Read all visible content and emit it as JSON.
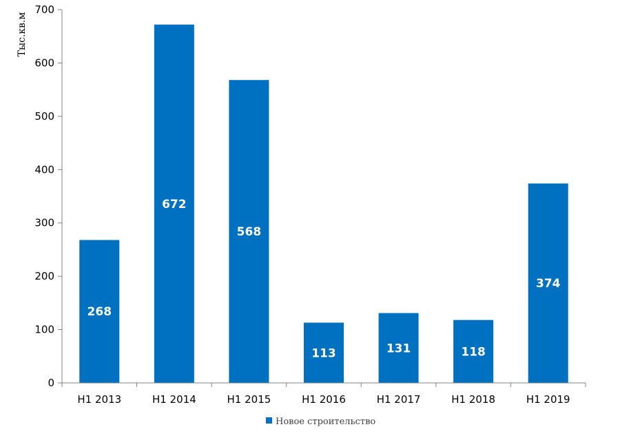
{
  "chart_data": {
    "type": "bar",
    "title": "",
    "xlabel": "",
    "ylabel": "Тыс.кв.м",
    "ylim": [
      0,
      700
    ],
    "yticks": [
      0,
      100,
      200,
      300,
      400,
      500,
      600,
      700
    ],
    "grid": false,
    "legend_position": "bottom",
    "categories": [
      "H1 2013",
      "H1 2014",
      "H1 2015",
      "H1 2016",
      "H1 2017",
      "H1 2018",
      "H1 2019"
    ],
    "series": [
      {
        "name": "Новое строительство",
        "color": "#0070c0",
        "values": [
          268,
          672,
          568,
          113,
          131,
          118,
          374
        ],
        "labels": [
          "268",
          "672",
          "568",
          "113",
          "131",
          "118",
          "374"
        ]
      }
    ]
  }
}
